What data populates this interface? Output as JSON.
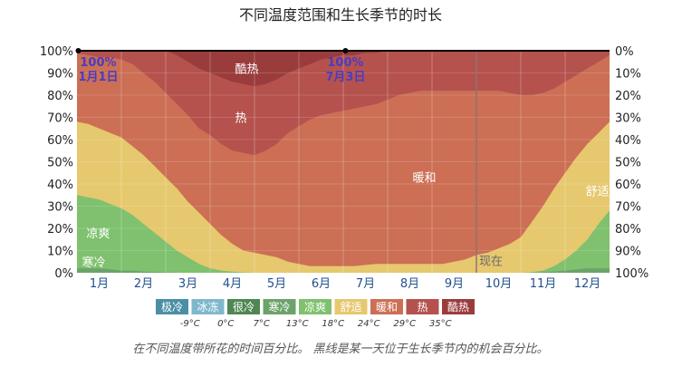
{
  "chart_data": {
    "type": "area",
    "title": "不同温度范围和生长季节的时长",
    "caption": "在不同温度带所花的时间百分比。 黑线是某一天位于生长季节内的机会百分比。",
    "x_labels": [
      "1月",
      "2月",
      "3月",
      "4月",
      "5月",
      "6月",
      "7月",
      "8月",
      "9月",
      "10月",
      "11月",
      "12月"
    ],
    "y_left_ticks": [
      "0%",
      "10%",
      "20%",
      "30%",
      "40%",
      "50%",
      "60%",
      "70%",
      "80%",
      "90%",
      "100%"
    ],
    "y_right_ticks": [
      "100%",
      "90%",
      "80%",
      "70%",
      "60%",
      "50%",
      "40%",
      "30%",
      "20%",
      "10%",
      "0%"
    ],
    "ylim": [
      0,
      100
    ],
    "x_domain_months": [
      0,
      12
    ],
    "series_colors": {
      "寒冷": "#6ba36a",
      "凉爽": "#7fc16e",
      "舒适": "#e6c86e",
      "暖和": "#cc6f55",
      "热": "#b5524e",
      "酷热": "#9a3c3c"
    },
    "boundaries": {
      "x": [
        0,
        0.25,
        0.5,
        0.75,
        1.0,
        1.25,
        1.5,
        1.75,
        2.0,
        2.25,
        2.5,
        2.75,
        3.0,
        3.25,
        3.5,
        3.75,
        4.0,
        4.25,
        4.5,
        4.75,
        5.0,
        5.25,
        5.5,
        5.75,
        6.0,
        6.25,
        6.5,
        6.75,
        7.0,
        7.25,
        7.5,
        7.75,
        8.0,
        8.25,
        8.5,
        8.75,
        9.0,
        9.25,
        9.5,
        9.75,
        10.0,
        10.25,
        10.5,
        10.75,
        11.0,
        11.25,
        11.5,
        11.75,
        12.0
      ],
      "寒冷_top": [
        2,
        2,
        2,
        1.5,
        1,
        1,
        0.5,
        0.3,
        0.2,
        0,
        0,
        0,
        0,
        0,
        0,
        0,
        0,
        0,
        0,
        0,
        0,
        0,
        0,
        0,
        0,
        0,
        0,
        0,
        0,
        0,
        0,
        0,
        0,
        0,
        0,
        0,
        0,
        0,
        0,
        0,
        0,
        0,
        0.3,
        0.6,
        1,
        1.5,
        2,
        2,
        2
      ],
      "凉爽_top": [
        35,
        34,
        33,
        31,
        29,
        26,
        22,
        18,
        14,
        10,
        7,
        4,
        2,
        1,
        0.5,
        0.2,
        0,
        0,
        0,
        0,
        0,
        0,
        0,
        0,
        0,
        0,
        0,
        0,
        0,
        0,
        0,
        0,
        0,
        0,
        0,
        0,
        0,
        0,
        0,
        0,
        0,
        0.3,
        1,
        3,
        6,
        10,
        15,
        22,
        28
      ],
      "舒适_top": [
        68,
        67,
        65,
        63,
        61,
        57,
        53,
        48,
        43,
        38,
        32,
        27,
        22,
        17,
        13,
        10,
        9,
        8,
        7,
        5,
        4,
        3,
        3,
        3,
        3,
        3,
        3.5,
        4,
        4,
        4,
        4,
        4,
        4,
        4,
        5,
        6,
        8,
        9,
        11,
        13,
        16,
        23,
        30,
        38,
        45,
        52,
        58,
        63,
        68
      ],
      "暖和_top": [
        99,
        98,
        97,
        97,
        96,
        94,
        90,
        86,
        81,
        76,
        71,
        65,
        62,
        58,
        55,
        54,
        53,
        55,
        58,
        63,
        66,
        69,
        71,
        72,
        73,
        74,
        75,
        76,
        78,
        80,
        81,
        82,
        82,
        82,
        82,
        82,
        82,
        82,
        82,
        81,
        80,
        80,
        81,
        83,
        86,
        89,
        92,
        95,
        98
      ],
      "热_top": [
        100,
        100,
        100,
        100,
        100,
        100,
        100,
        100,
        100,
        98,
        95,
        92,
        90,
        88,
        86,
        85,
        84,
        85,
        87,
        90,
        92,
        94,
        96,
        97,
        98,
        98,
        99,
        99,
        100,
        100,
        100,
        100,
        100,
        100,
        100,
        100,
        100,
        100,
        100,
        100,
        100,
        100,
        100,
        100,
        100,
        100,
        100,
        100,
        100
      ]
    },
    "band_labels": [
      {
        "text": "寒冷",
        "x": 0.05,
        "y": 5
      },
      {
        "text": "凉爽",
        "x": 0.15,
        "y": 18
      },
      {
        "text": "舒适",
        "x": 11.4,
        "y": 37
      },
      {
        "text": "暖和",
        "x": 7.5,
        "y": 43
      },
      {
        "text": "热",
        "x": 3.5,
        "y": 70
      },
      {
        "text": "酷热",
        "x": 3.5,
        "y": 92
      }
    ],
    "markers": [
      {
        "x": 0.03,
        "value": "100%",
        "date": "1月1日"
      },
      {
        "x": 6.05,
        "value": "100%",
        "date": "7月3日"
      }
    ],
    "now_label": "现在",
    "now_x": 9.0,
    "growing_season_pct": 100
  },
  "legend": {
    "items": [
      {
        "label": "极冷",
        "color": "#4a8fa6"
      },
      {
        "label": "冰冻",
        "color": "#7fb8cc"
      },
      {
        "label": "很冷",
        "color": "#4f8752"
      },
      {
        "label": "寒冷",
        "color": "#6ba36a"
      },
      {
        "label": "凉爽",
        "color": "#7fc16e"
      },
      {
        "label": "舒适",
        "color": "#e6c86e"
      },
      {
        "label": "暖和",
        "color": "#cc6f55"
      },
      {
        "label": "热",
        "color": "#b5524e"
      },
      {
        "label": "酷热",
        "color": "#9a3c3c"
      }
    ],
    "temps": [
      "-9°C",
      "0°C",
      "7°C",
      "13°C",
      "18°C",
      "24°C",
      "29°C",
      "35°C"
    ]
  }
}
